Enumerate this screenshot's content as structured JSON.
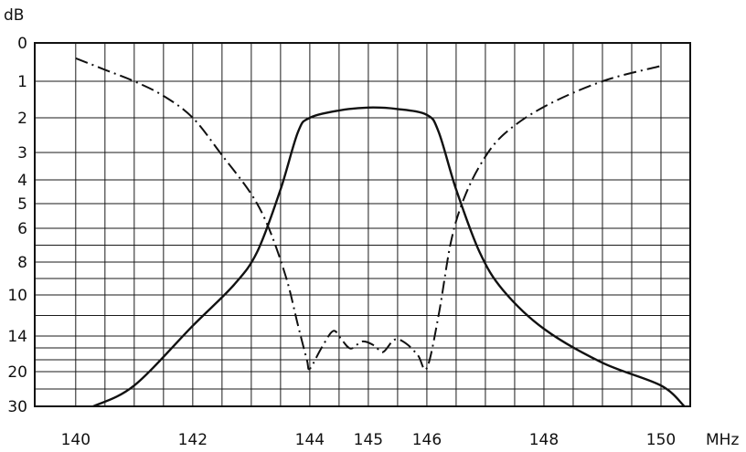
{
  "chart_data": {
    "type": "line",
    "xlabel": "MHz",
    "ylabel": "dB",
    "x_ticks": [
      140,
      142,
      144,
      145,
      146,
      148,
      150
    ],
    "y_ticks": [
      0,
      1,
      2,
      3,
      4,
      5,
      6,
      8,
      10,
      14,
      20,
      30
    ],
    "xlim": [
      139.3,
      150.5
    ],
    "y_scale": "nonlinear (return-loss style, labelled positions only)",
    "grid": true,
    "series": [
      {
        "style": "solid",
        "x": [
          140.3,
          141.0,
          142.0,
          142.7,
          143.1,
          143.5,
          143.8,
          144.0,
          144.5,
          145.0,
          145.5,
          146.0,
          146.2,
          146.5,
          146.9,
          147.3,
          148.0,
          149.0,
          150.0,
          150.4
        ],
        "y": [
          30,
          24,
          13,
          9.4,
          7.4,
          4.4,
          2.4,
          2.0,
          1.8,
          1.72,
          1.76,
          1.92,
          2.4,
          4.4,
          7.4,
          9.7,
          13.3,
          18.5,
          24,
          30
        ]
      },
      {
        "style": "dash-dot",
        "x": [
          140.0,
          140.5,
          141.0,
          141.5,
          142.0,
          142.5,
          143.0,
          143.3,
          143.6,
          143.8,
          143.95,
          144.0,
          144.2,
          144.4,
          144.55,
          144.7,
          144.9,
          145.1,
          145.25,
          145.45,
          145.65,
          145.85,
          146.0,
          146.2,
          146.4,
          146.6,
          146.9,
          147.3,
          148.0,
          149.0,
          150.0
        ],
        "y": [
          0.4,
          0.7,
          1.0,
          1.4,
          2.0,
          3.1,
          4.6,
          6.0,
          9.0,
          13.0,
          18.0,
          19.5,
          16.0,
          13.5,
          14.7,
          16.1,
          14.9,
          15.6,
          16.7,
          14.6,
          15.3,
          17.3,
          19.4,
          12.0,
          7.0,
          5.0,
          3.5,
          2.5,
          1.7,
          1.0,
          0.6
        ]
      }
    ]
  }
}
